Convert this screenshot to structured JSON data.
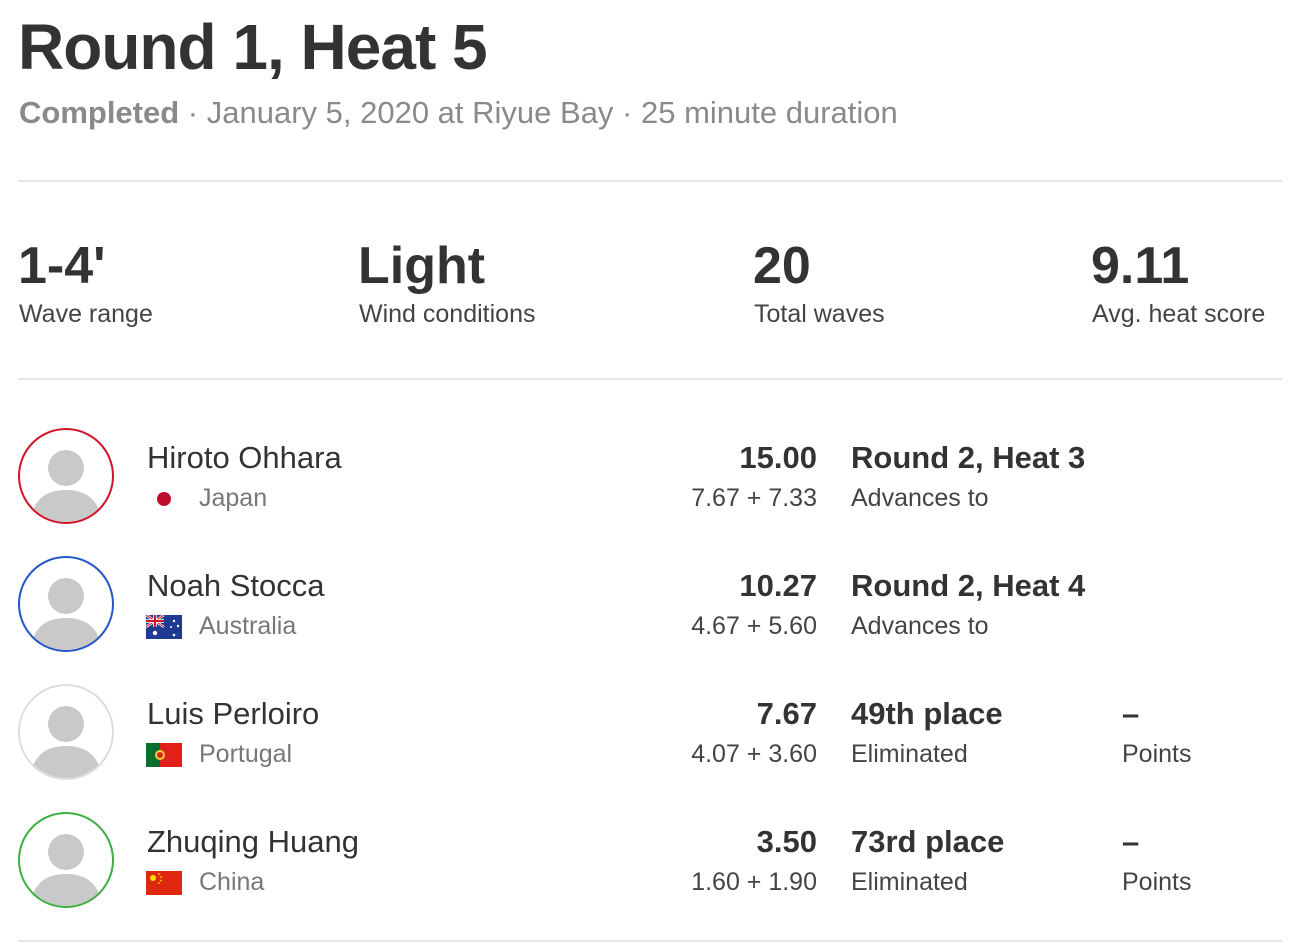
{
  "header": {
    "title": "Round 1, Heat 5",
    "status": "Completed",
    "details": " · January 5, 2020 at Riyue Bay · 25 minute duration"
  },
  "stats": [
    {
      "value": "1-4'",
      "label": "Wave range"
    },
    {
      "value": "Light",
      "label": "Wind conditions"
    },
    {
      "value": "20",
      "label": "Total waves"
    },
    {
      "value": "9.11",
      "label": "Avg. heat score"
    }
  ],
  "surfers": [
    {
      "name": "Hiroto Ohhara",
      "country": "Japan",
      "total": "15.00",
      "waves": "7.67 + 7.33",
      "result": "Round 2, Heat 3",
      "result_label": "Advances to",
      "points": "",
      "points_label": "",
      "ring": "#d0142c"
    },
    {
      "name": "Noah Stocca",
      "country": "Australia",
      "total": "10.27",
      "waves": "4.67 + 5.60",
      "result": "Round 2, Heat 4",
      "result_label": "Advances to",
      "points": "",
      "points_label": "",
      "ring": "#2456c8"
    },
    {
      "name": "Luis Perloiro",
      "country": "Portugal",
      "total": "7.67",
      "waves": "4.07 + 3.60",
      "result": "49th place",
      "result_label": "Eliminated",
      "points": "–",
      "points_label": "Points",
      "ring": "#dddddd"
    },
    {
      "name": "Zhuqing Huang",
      "country": "China",
      "total": "3.50",
      "waves": "1.60 + 1.90",
      "result": "73rd place",
      "result_label": "Eliminated",
      "points": "–",
      "points_label": "Points",
      "ring": "#3cb043"
    }
  ]
}
